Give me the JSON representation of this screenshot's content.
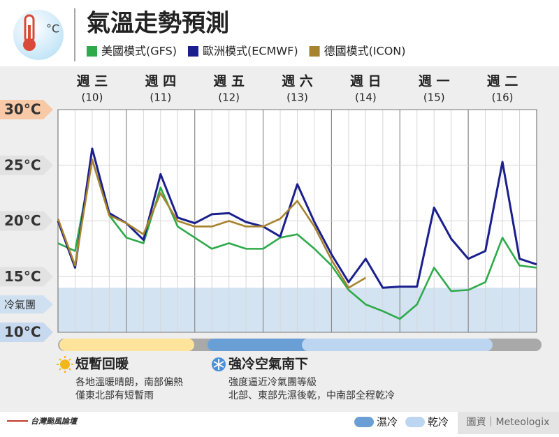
{
  "chart_data": {
    "type": "line",
    "title": "氣溫走勢預測",
    "days": [
      {
        "name": "週 三",
        "date": "(10)"
      },
      {
        "name": "週 四",
        "date": "(11)"
      },
      {
        "name": "週 五",
        "date": "(12)"
      },
      {
        "name": "週 六",
        "date": "(13)"
      },
      {
        "name": "週 日",
        "date": "(14)"
      },
      {
        "name": "週 一",
        "date": "(15)"
      },
      {
        "name": "週 二",
        "date": "(16)"
      }
    ],
    "x": [
      0,
      0.25,
      0.5,
      0.75,
      1,
      1.25,
      1.5,
      1.75,
      2,
      2.25,
      2.5,
      2.75,
      3,
      3.25,
      3.5,
      3.75,
      4,
      4.25,
      4.5,
      4.75,
      5,
      5.25,
      5.5,
      5.75,
      6,
      6.25,
      6.5,
      6.75,
      7
    ],
    "xlim": [
      0,
      7
    ],
    "ylim": [
      10,
      30
    ],
    "yticks": [
      {
        "value": 10,
        "label": "10°C",
        "color": "#c6d9ee"
      },
      {
        "value": 15,
        "label": "15°C",
        "color": "#e2e2e2"
      },
      {
        "value": 20,
        "label": "20°C",
        "color": "#e2e2e2"
      },
      {
        "value": 25,
        "label": "25°C",
        "color": "#e2e2e2"
      },
      {
        "value": 30,
        "label": "30°C",
        "color": "#f7c9a6"
      }
    ],
    "cold_band": {
      "label": "冷氣團",
      "range": [
        10,
        14
      ],
      "color": "#cfe0f1"
    },
    "grid": true,
    "series": [
      {
        "name": "美國模式(GFS)",
        "color": "#2eaa4a",
        "values": [
          18.0,
          17.3,
          25.5,
          20.5,
          18.5,
          18.0,
          23.0,
          19.5,
          18.5,
          17.5,
          18.0,
          17.5,
          17.5,
          18.5,
          18.8,
          17.5,
          16.0,
          13.8,
          12.5,
          11.9,
          11.2,
          12.5,
          15.8,
          13.7,
          13.8,
          14.5,
          18.5,
          16.0,
          15.8
        ]
      },
      {
        "name": "歐洲模式(ECMWF)",
        "color": "#1a1f8c",
        "values": [
          20.0,
          15.8,
          26.5,
          20.7,
          19.8,
          18.3,
          24.2,
          20.3,
          19.8,
          20.6,
          20.7,
          19.9,
          19.5,
          18.6,
          23.3,
          19.9,
          17.0,
          14.5,
          16.6,
          14.0,
          14.1,
          14.1,
          21.2,
          18.4,
          16.6,
          17.3,
          25.3,
          16.6,
          16.1
        ]
      },
      {
        "name": "德國模式(ICON)",
        "color": "#a8832e",
        "values": [
          20.2,
          16.0,
          25.5,
          20.5,
          19.8,
          18.8,
          22.5,
          20.0,
          19.5,
          19.5,
          20.0,
          19.5,
          19.5,
          20.2,
          21.8,
          19.5,
          16.5,
          14.0,
          14.9,
          null,
          null,
          null,
          null,
          null,
          null,
          null,
          null,
          null,
          null
        ]
      }
    ],
    "notes": [
      {
        "heading": "短暫回暖",
        "lines": [
          "各地溫暖晴朗，南部偏熱",
          "僅東北部有短暫雨"
        ]
      },
      {
        "heading": "強冷空氣南下",
        "lines": [
          "強度逼近冷氣團等級",
          "北部、東部先濕後乾，中南部全程乾冷"
        ]
      }
    ],
    "phase_legend": [
      "濕冷",
      "乾冷"
    ],
    "source": "圖資｜Meteologix",
    "brand": "台灣颱風論壇"
  }
}
